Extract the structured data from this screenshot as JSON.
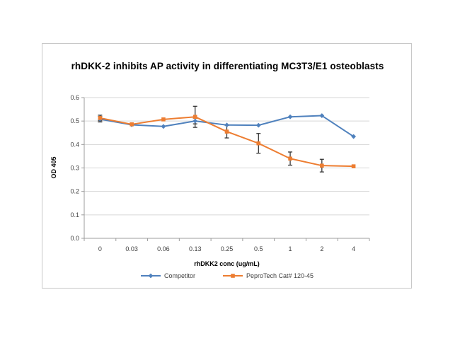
{
  "window": {
    "background": "#ffffff"
  },
  "chart_data": {
    "type": "line",
    "title": "rhDKK-2 inhibits AP activity in differentiating MC3T3/E1 osteoblasts",
    "xlabel": "rhDKK2 conc (ug/mL)",
    "ylabel": "OD 405",
    "categories": [
      "0",
      "0.03",
      "0.06",
      "0.13",
      "0.25",
      "0.5",
      "1",
      "2",
      "4"
    ],
    "y_tick_labels": [
      "0.0",
      "0.1",
      "0.2",
      "0.3",
      "0.4",
      "0.5",
      "0.6"
    ],
    "y_ticks": [
      0.0,
      0.1,
      0.2,
      0.3,
      0.4,
      0.5,
      0.6
    ],
    "ylim": [
      0.0,
      0.6
    ],
    "grid": "horizontal",
    "legend_position": "bottom-center",
    "series": [
      {
        "name": "Competitor",
        "color": "#4F81BD",
        "marker": "diamond",
        "values": [
          0.508,
          0.484,
          0.477,
          0.5,
          0.483,
          0.482,
          0.518,
          0.523,
          0.434
        ],
        "error": [
          0.012,
          0,
          0,
          0.012,
          0,
          0,
          0,
          0,
          0
        ]
      },
      {
        "name": "PeproTech Cat# 120-45",
        "color": "#ED7D31",
        "marker": "square",
        "values": [
          0.513,
          0.486,
          0.507,
          0.518,
          0.455,
          0.405,
          0.34,
          0.31,
          0.307
        ],
        "error": [
          0.012,
          0,
          0,
          0.045,
          0.027,
          0.042,
          0.028,
          0.027,
          0
        ]
      }
    ],
    "colors": {
      "gridline": "#D6D6D6",
      "axis": "#9C9C9C",
      "error_bar": "#262626",
      "tick_text": "#3F3F3F",
      "title_text": "#000000",
      "frame_border": "#C8C8C8"
    }
  }
}
